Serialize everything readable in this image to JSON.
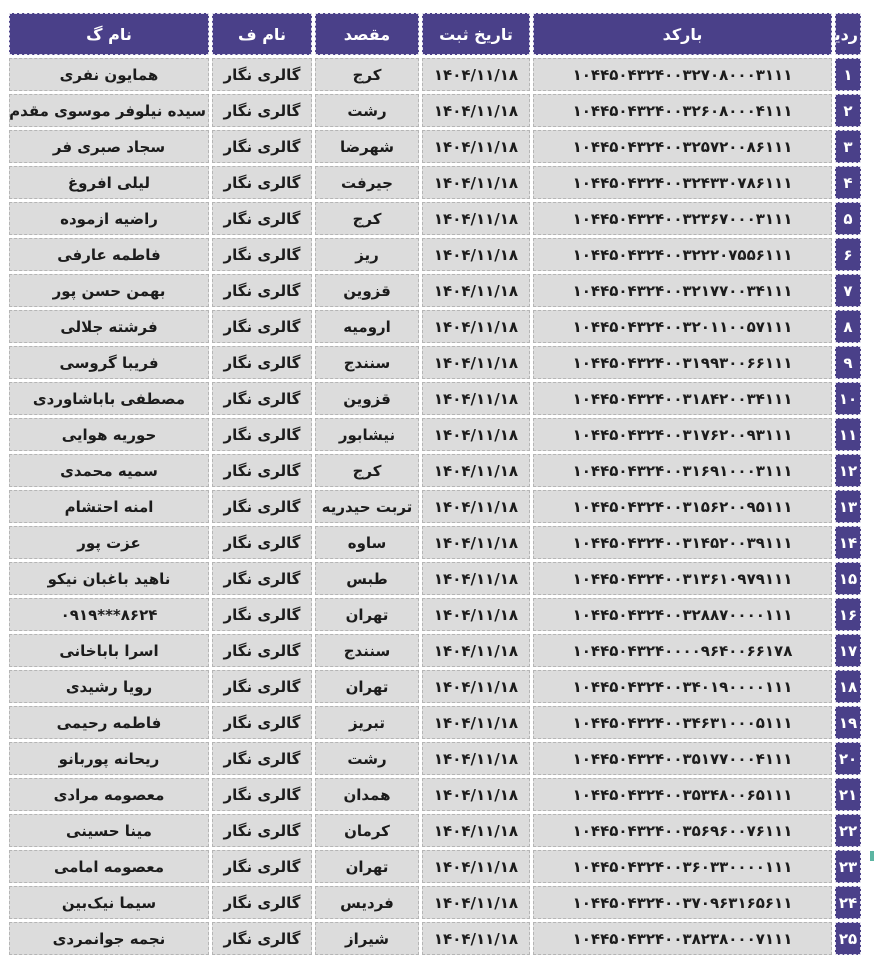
{
  "table": {
    "columns": [
      {
        "key": "index",
        "label": "ردیف"
      },
      {
        "key": "barcode",
        "label": "بارکد"
      },
      {
        "key": "date",
        "label": "تاریخ ثبت"
      },
      {
        "key": "destination",
        "label": "مقصد"
      },
      {
        "key": "name_f",
        "label": "نام ف"
      },
      {
        "key": "name_g",
        "label": "نام گ"
      }
    ],
    "rows": [
      {
        "index": "۱",
        "barcode": "۱۰۴۴۵۰۴۳۲۴۰۰۳۲۷۰۸۰۰۰۳۱۱۱",
        "date": "۱۴۰۴/۱۱/۱۸",
        "destination": "کرج",
        "name_f": "گالری نگار",
        "name_g": "همایون نفری"
      },
      {
        "index": "۲",
        "barcode": "۱۰۴۴۵۰۴۳۲۴۰۰۳۲۶۰۸۰۰۰۴۱۱۱",
        "date": "۱۴۰۴/۱۱/۱۸",
        "destination": "رشت",
        "name_f": "گالری نگار",
        "name_g": "سیده نیلوفر موسوی مقدم"
      },
      {
        "index": "۳",
        "barcode": "۱۰۴۴۵۰۴۳۲۴۰۰۳۲۵۷۲۰۰۸۶۱۱۱",
        "date": "۱۴۰۴/۱۱/۱۸",
        "destination": "شهرضا",
        "name_f": "گالری نگار",
        "name_g": "سجاد صبری فر"
      },
      {
        "index": "۴",
        "barcode": "۱۰۴۴۵۰۴۳۲۴۰۰۳۲۴۳۳۰۷۸۶۱۱۱",
        "date": "۱۴۰۴/۱۱/۱۸",
        "destination": "جیرفت",
        "name_f": "گالری نگار",
        "name_g": "لیلی افروغ"
      },
      {
        "index": "۵",
        "barcode": "۱۰۴۴۵۰۴۳۲۴۰۰۳۲۳۶۷۰۰۰۳۱۱۱",
        "date": "۱۴۰۴/۱۱/۱۸",
        "destination": "کرج",
        "name_f": "گالری نگار",
        "name_g": "راضیه ازموده"
      },
      {
        "index": "۶",
        "barcode": "۱۰۴۴۵۰۴۳۲۴۰۰۳۲۲۲۰۷۵۵۶۱۱۱",
        "date": "۱۴۰۴/۱۱/۱۸",
        "destination": "ریز",
        "name_f": "گالری نگار",
        "name_g": "فاطمه عارفی"
      },
      {
        "index": "۷",
        "barcode": "۱۰۴۴۵۰۴۳۲۴۰۰۳۲۱۷۷۰۰۳۴۱۱۱",
        "date": "۱۴۰۴/۱۱/۱۸",
        "destination": "قزوین",
        "name_f": "گالری نگار",
        "name_g": "بهمن حسن پور"
      },
      {
        "index": "۸",
        "barcode": "۱۰۴۴۵۰۴۳۲۴۰۰۳۲۰۱۱۰۰۵۷۱۱۱",
        "date": "۱۴۰۴/۱۱/۱۸",
        "destination": "ارومیه",
        "name_f": "گالری نگار",
        "name_g": "فرشته جلالی"
      },
      {
        "index": "۹",
        "barcode": "۱۰۴۴۵۰۴۳۲۴۰۰۳۱۹۹۳۰۰۶۶۱۱۱",
        "date": "۱۴۰۴/۱۱/۱۸",
        "destination": "سنندج",
        "name_f": "گالری نگار",
        "name_g": "فریبا گروسی"
      },
      {
        "index": "۱۰",
        "barcode": "۱۰۴۴۵۰۴۳۲۴۰۰۳۱۸۴۲۰۰۳۴۱۱۱",
        "date": "۱۴۰۴/۱۱/۱۸",
        "destination": "قزوین",
        "name_f": "گالری نگار",
        "name_g": "مصطفی باباشاوردی"
      },
      {
        "index": "۱۱",
        "barcode": "۱۰۴۴۵۰۴۳۲۴۰۰۳۱۷۶۲۰۰۹۳۱۱۱",
        "date": "۱۴۰۴/۱۱/۱۸",
        "destination": "نیشابور",
        "name_f": "گالری نگار",
        "name_g": "حوریه هوایی"
      },
      {
        "index": "۱۲",
        "barcode": "۱۰۴۴۵۰۴۳۲۴۰۰۳۱۶۹۱۰۰۰۳۱۱۱",
        "date": "۱۴۰۴/۱۱/۱۸",
        "destination": "کرج",
        "name_f": "گالری نگار",
        "name_g": "سمیه محمدی"
      },
      {
        "index": "۱۳",
        "barcode": "۱۰۴۴۵۰۴۳۲۴۰۰۳۱۵۶۲۰۰۹۵۱۱۱",
        "date": "۱۴۰۴/۱۱/۱۸",
        "destination": "تربت حیدریه",
        "name_f": "گالری نگار",
        "name_g": "امنه احتشام"
      },
      {
        "index": "۱۴",
        "barcode": "۱۰۴۴۵۰۴۳۲۴۰۰۳۱۴۵۲۰۰۳۹۱۱۱",
        "date": "۱۴۰۴/۱۱/۱۸",
        "destination": "ساوه",
        "name_f": "گالری نگار",
        "name_g": "عزت پور"
      },
      {
        "index": "۱۵",
        "barcode": "۱۰۴۴۵۰۴۳۲۴۰۰۳۱۳۶۱۰۹۷۹۱۱۱",
        "date": "۱۴۰۴/۱۱/۱۸",
        "destination": "طبس",
        "name_f": "گالری نگار",
        "name_g": "ناهید باغبان نیکو"
      },
      {
        "index": "۱۶",
        "barcode": "۱۰۴۴۵۰۴۳۲۴۰۰۳۲۸۸۷۰۰۰۰۱۱۱",
        "date": "۱۴۰۴/۱۱/۱۸",
        "destination": "تهران",
        "name_f": "گالری نگار",
        "name_g": "۰۹۱۹***۸۶۲۴"
      },
      {
        "index": "۱۷",
        "barcode": "۱۰۴۴۵۰۴۳۲۴۰۰۰۰۹۶۴۰۰۶۶۱۷۸",
        "date": "۱۴۰۴/۱۱/۱۸",
        "destination": "سنندج",
        "name_f": "گالری نگار",
        "name_g": "اسرا باباخانی"
      },
      {
        "index": "۱۸",
        "barcode": "۱۰۴۴۵۰۴۳۲۴۰۰۳۴۰۱۹۰۰۰۰۱۱۱",
        "date": "۱۴۰۴/۱۱/۱۸",
        "destination": "تهران",
        "name_f": "گالری نگار",
        "name_g": "رویا رشیدی"
      },
      {
        "index": "۱۹",
        "barcode": "۱۰۴۴۵۰۴۳۲۴۰۰۳۴۶۳۱۰۰۰۵۱۱۱",
        "date": "۱۴۰۴/۱۱/۱۸",
        "destination": "تبریز",
        "name_f": "گالری نگار",
        "name_g": "فاطمه رحیمی"
      },
      {
        "index": "۲۰",
        "barcode": "۱۰۴۴۵۰۴۳۲۴۰۰۳۵۱۷۷۰۰۰۴۱۱۱",
        "date": "۱۴۰۴/۱۱/۱۸",
        "destination": "رشت",
        "name_f": "گالری نگار",
        "name_g": "ریحانه پوربانو"
      },
      {
        "index": "۲۱",
        "barcode": "۱۰۴۴۵۰۴۳۲۴۰۰۳۵۳۴۸۰۰۶۵۱۱۱",
        "date": "۱۴۰۴/۱۱/۱۸",
        "destination": "همدان",
        "name_f": "گالری نگار",
        "name_g": "معصومه مرادی"
      },
      {
        "index": "۲۲",
        "barcode": "۱۰۴۴۵۰۴۳۲۴۰۰۳۵۶۹۶۰۰۷۶۱۱۱",
        "date": "۱۴۰۴/۱۱/۱۸",
        "destination": "کرمان",
        "name_f": "گالری نگار",
        "name_g": "مینا حسینی"
      },
      {
        "index": "۲۳",
        "barcode": "۱۰۴۴۵۰۴۳۲۴۰۰۳۶۰۳۳۰۰۰۰۱۱۱",
        "date": "۱۴۰۴/۱۱/۱۸",
        "destination": "تهران",
        "name_f": "گالری نگار",
        "name_g": "معصومه امامی"
      },
      {
        "index": "۲۴",
        "barcode": "۱۰۴۴۵۰۴۳۲۴۰۰۳۷۰۹۶۳۱۶۵۶۱۱",
        "date": "۱۴۰۴/۱۱/۱۸",
        "destination": "فردیس",
        "name_f": "گالری نگار",
        "name_g": "سیما نیک‌بین"
      },
      {
        "index": "۲۵",
        "barcode": "۱۰۴۴۵۰۴۳۲۴۰۰۳۸۲۳۸۰۰۰۷۱۱۱",
        "date": "۱۴۰۴/۱۱/۱۸",
        "destination": "شیراز",
        "name_f": "گالری نگار",
        "name_g": "نجمه جوانمردی"
      }
    ]
  },
  "colors": {
    "header_bg": "#4a4089",
    "header_text": "#ffffff",
    "row_bg": "#dcdcdc",
    "body_text": "#1c1c1c",
    "dashed_border": "#b5b5b5"
  }
}
